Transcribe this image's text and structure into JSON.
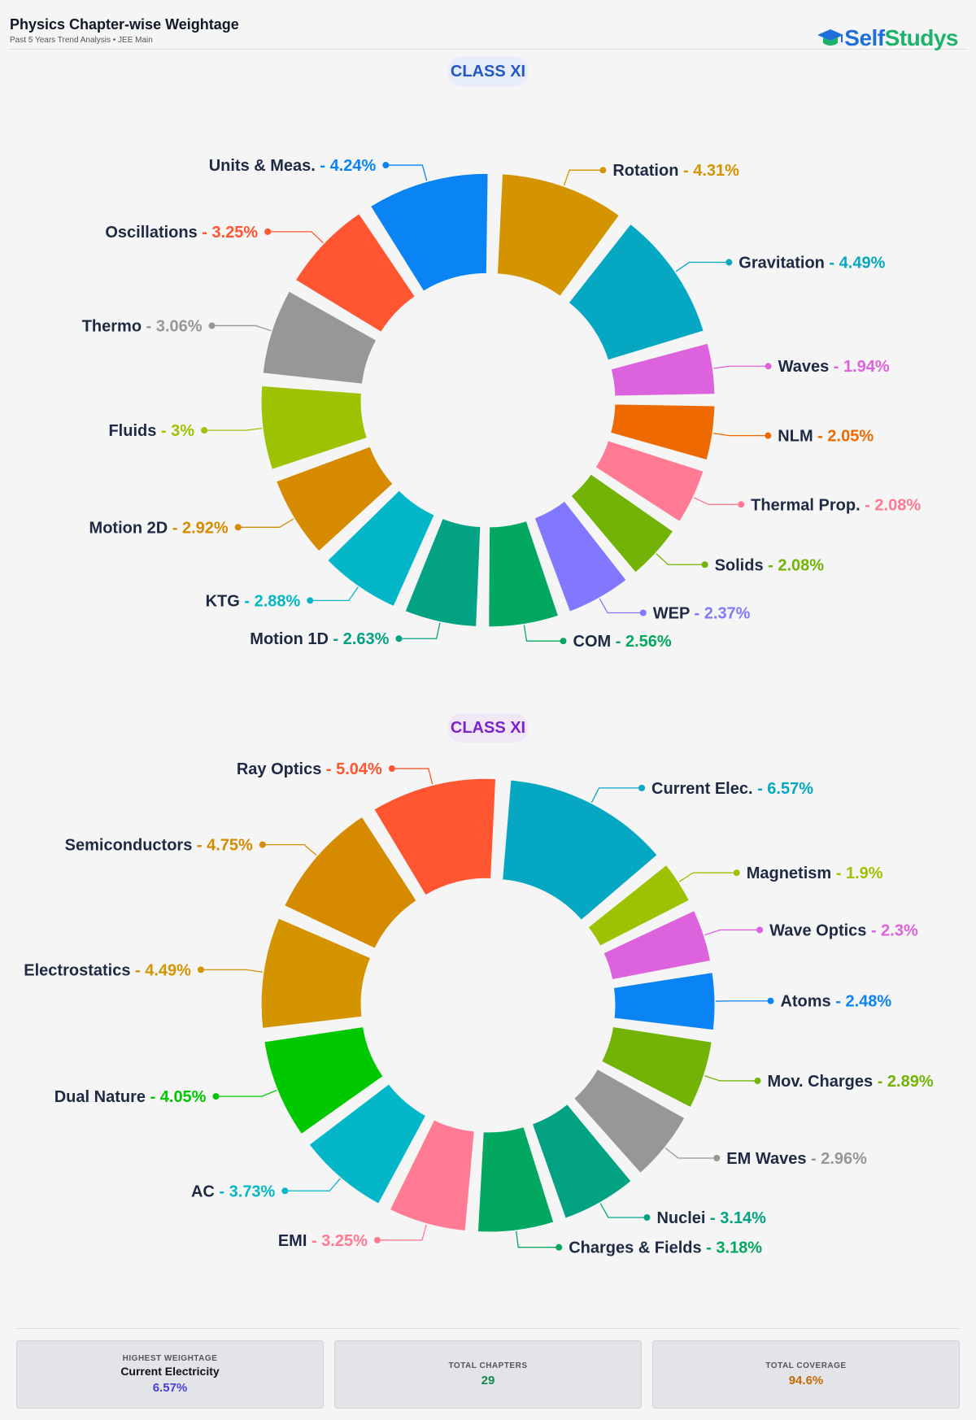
{
  "header": {
    "title": "Physics Chapter-wise Weightage",
    "subtitle": "Past 5 Years Trend Analysis • JEE Main",
    "logo_part1": "Self",
    "logo_part2": "Studys"
  },
  "chart_data": [
    {
      "type": "pie",
      "title": "CLASS XI",
      "categories": [
        "Units & Meas.",
        "Rotation",
        "Gravitation",
        "Waves",
        "NLM",
        "Thermal Prop.",
        "Solids",
        "WEP",
        "COM",
        "Motion 1D",
        "KTG",
        "Motion 2D",
        "Fluids",
        "Thermo",
        "Oscillations"
      ],
      "labels": [
        "Units & Meas. - 4.24%",
        "Rotation - 4.31%",
        "Gravitation - 4.49%",
        "Waves - 1.94%",
        "NLM - 2.05%",
        "Thermal Prop. - 2.08%",
        "Solids - 2.08%",
        "WEP - 2.37%",
        "COM - 2.56%",
        "Motion 1D - 2.63%",
        "KTG - 2.88%",
        "Motion 2D - 2.92%",
        "Fluids - 3%",
        "Thermo - 3.06%",
        "Oscillations - 3.25%"
      ],
      "values": [
        4.24,
        4.31,
        4.49,
        1.94,
        2.05,
        2.08,
        2.08,
        2.37,
        2.56,
        2.63,
        2.88,
        2.92,
        3.0,
        3.06,
        3.25
      ],
      "colors": [
        "#0a84f5",
        "#d49400",
        "#05a7c3",
        "#dd62dd",
        "#ee6a00",
        "#ff7a92",
        "#72b305",
        "#8278ff",
        "#03a860",
        "#02a283",
        "#03b7c9",
        "#d68a00",
        "#9dc201",
        "#979797",
        "#ff5530"
      ]
    },
    {
      "type": "pie",
      "title": "CLASS XI",
      "categories": [
        "Ray Optics",
        "Current Elec.",
        "Magnetism",
        "Wave Optics",
        "Atoms",
        "Mov. Charges",
        "EM Waves",
        "Nuclei",
        "Charges & Fields",
        "EMI",
        "AC",
        "Dual Nature",
        "Electrostatics",
        "Semiconductors"
      ],
      "labels": [
        "Ray Optics - 5.04%",
        "Current Elec. - 6.57%",
        "Magnetism - 1.9%",
        "Wave Optics - 2.3%",
        "Atoms - 2.48%",
        "Mov. Charges - 2.89%",
        "EM Waves - 2.96%",
        "Nuclei - 3.14%",
        "Charges & Fields - 3.18%",
        "EMI - 3.25%",
        "AC - 3.73%",
        "Dual Nature - 4.05%",
        "Electrostatics - 4.49%",
        "Semiconductors - 4.75%"
      ],
      "values": [
        5.04,
        6.57,
        1.9,
        2.3,
        2.48,
        2.89,
        2.96,
        3.14,
        3.18,
        3.25,
        3.73,
        4.05,
        4.49,
        4.75
      ],
      "colors": [
        "#ff5530",
        "#05a7c3",
        "#9dc201",
        "#dd62dd",
        "#0a84f5",
        "#72b305",
        "#979797",
        "#02a283",
        "#03a860",
        "#ff7a92",
        "#03b7c9",
        "#00c800",
        "#d49400",
        "#d68a00"
      ]
    }
  ],
  "summary": {
    "highest_label": "HIGHEST WEIGHTAGE",
    "highest_chapter": "Current Electricity",
    "highest_value": "6.57%",
    "chapters_label": "TOTAL CHAPTERS",
    "chapters_value": "29",
    "coverage_label": "TOTAL COVERAGE",
    "coverage_value": "94.6%"
  },
  "colors": {
    "highest_value": "#4a3fd8",
    "chapters_value": "#138a4c",
    "coverage_value": "#c56a05"
  }
}
